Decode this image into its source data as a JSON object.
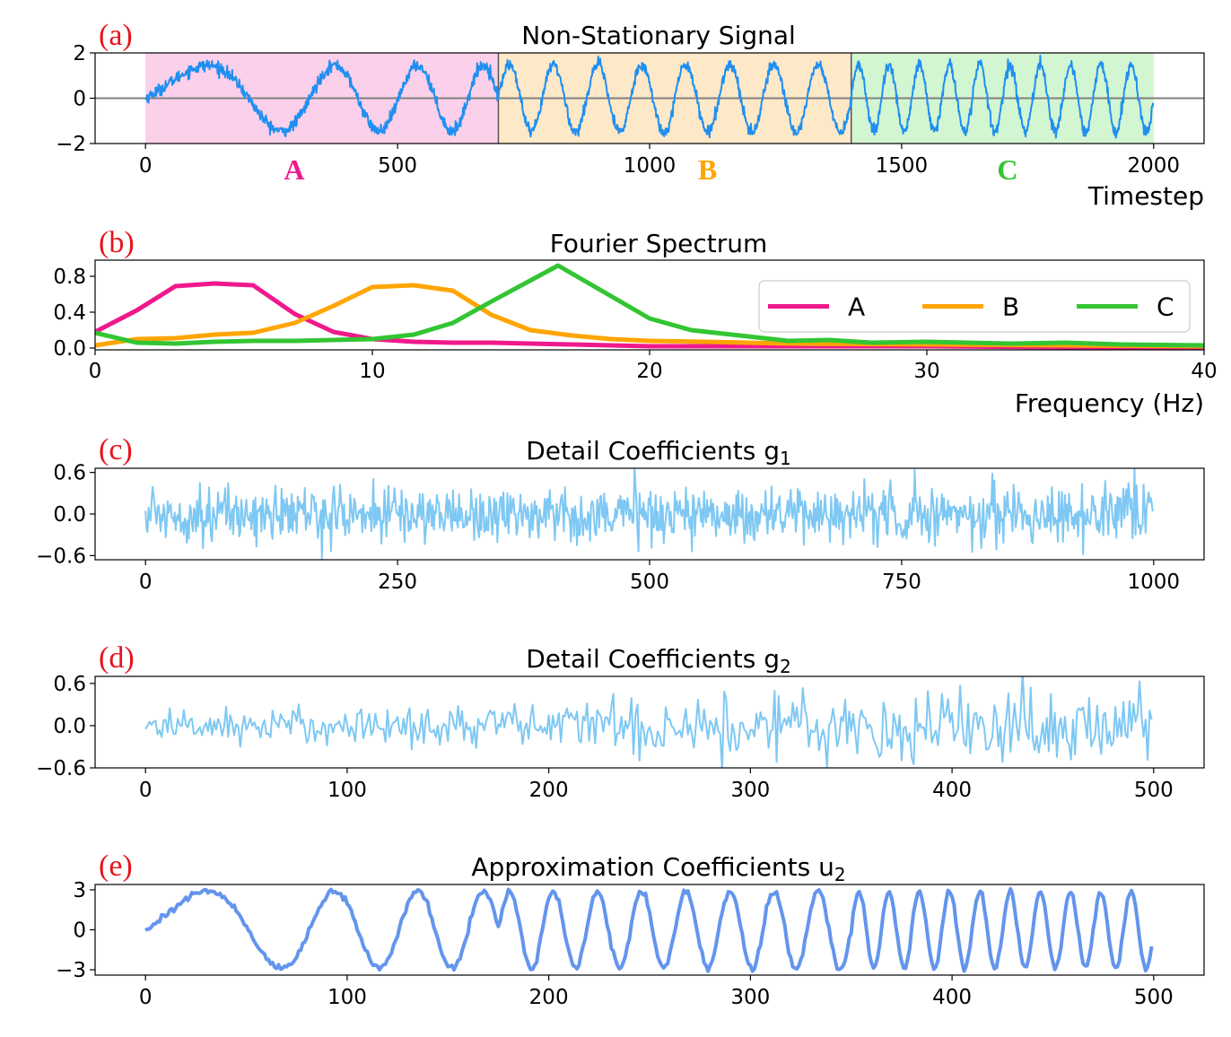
{
  "figure": {
    "colors": {
      "signal": "#1f8ff0",
      "detail": "#7ec8f3",
      "approx": "#6495ed",
      "A": "#f0198c",
      "B": "#ffa500",
      "C": "#33c533",
      "regionA": "#fbd0ea",
      "regionB": "#fde8c8",
      "regionC": "#d2f5d2",
      "zero_line": "#808080",
      "panel_tag": "#e8141c"
    }
  },
  "chart_data": [
    {
      "id": "a",
      "panel_tag": "(a)",
      "type": "line",
      "title": "Non-Stationary Signal",
      "xlabel": "Timestep",
      "ylabel": "",
      "xlim": [
        -100,
        2100
      ],
      "ylim": [
        -2,
        2
      ],
      "xticks": [
        0,
        500,
        1000,
        1500,
        2000
      ],
      "xtick_labels": [
        "0",
        "500",
        "1000",
        "1500",
        "2000"
      ],
      "yticks": [
        2,
        0,
        -2
      ],
      "ytick_labels": [
        "2",
        "0",
        "−2"
      ],
      "zero_line": true,
      "regions": [
        {
          "label": "A",
          "start": 0,
          "end": 700,
          "label_x": 295
        },
        {
          "label": "B",
          "start": 700,
          "end": 1400,
          "label_x": 1115
        },
        {
          "label": "C",
          "start": 1400,
          "end": 2000,
          "label_x": 1710
        }
      ],
      "series": [
        {
          "name": "signal",
          "length": 2000,
          "components": [
            {
              "start": 0,
              "end": 700,
              "amplitude": 1.45,
              "cycles": 3.5,
              "chirp": 2.6
            },
            {
              "start": 700,
              "end": 1400,
              "amplitude": 1.5,
              "cycles": 8,
              "chirp": 0
            },
            {
              "start": 1400,
              "end": 2000,
              "amplitude": 1.5,
              "cycles": 10,
              "chirp": 0
            }
          ],
          "noise": 0.13
        }
      ]
    },
    {
      "id": "b",
      "panel_tag": "(b)",
      "type": "line",
      "title": "Fourier Spectrum",
      "xlabel": "Frequency (Hz)",
      "ylabel": "",
      "xlim": [
        0,
        40
      ],
      "ylim": [
        -0.02,
        0.98
      ],
      "xticks": [
        0,
        10,
        20,
        30,
        40
      ],
      "xtick_labels": [
        "0",
        "10",
        "20",
        "30",
        "40"
      ],
      "yticks": [
        0.8,
        0.4,
        0.0
      ],
      "ytick_labels": [
        "0.8",
        "0.4",
        "0.0"
      ],
      "legend": {
        "position": "center-right",
        "entries": [
          "A",
          "B",
          "C"
        ]
      },
      "series": [
        {
          "name": "A",
          "x": [
            0,
            1.5,
            2.9,
            4.3,
            5.7,
            7.2,
            8.6,
            10,
            11.5,
            12.9,
            14.3,
            15.7,
            17.2,
            18.6,
            20,
            22,
            25,
            30,
            35,
            40
          ],
          "values": [
            0.18,
            0.42,
            0.69,
            0.72,
            0.7,
            0.38,
            0.18,
            0.1,
            0.07,
            0.06,
            0.06,
            0.05,
            0.04,
            0.03,
            0.02,
            0.02,
            0.02,
            0.02,
            0.01,
            0.01
          ]
        },
        {
          "name": "B",
          "x": [
            0,
            1.5,
            2.9,
            4.3,
            5.7,
            7.2,
            8.6,
            10,
            11.5,
            12.9,
            14.3,
            15.7,
            17.2,
            18.6,
            20,
            22,
            25,
            30,
            35,
            40
          ],
          "values": [
            0.03,
            0.1,
            0.11,
            0.15,
            0.17,
            0.28,
            0.47,
            0.68,
            0.7,
            0.64,
            0.37,
            0.2,
            0.14,
            0.1,
            0.08,
            0.07,
            0.05,
            0.04,
            0.03,
            0.02
          ]
        },
        {
          "name": "C",
          "x": [
            0,
            1.5,
            2.9,
            4.3,
            5.7,
            7.2,
            8.6,
            10,
            11.5,
            12.9,
            14.3,
            16.7,
            20,
            21.5,
            25,
            26.5,
            28,
            30,
            33,
            35,
            37,
            40
          ],
          "values": [
            0.17,
            0.06,
            0.05,
            0.07,
            0.08,
            0.08,
            0.09,
            0.1,
            0.15,
            0.28,
            0.52,
            0.92,
            0.33,
            0.2,
            0.08,
            0.09,
            0.06,
            0.07,
            0.05,
            0.06,
            0.04,
            0.03
          ]
        }
      ]
    },
    {
      "id": "c",
      "panel_tag": "(c)",
      "type": "line",
      "title": "Detail Coefficients g",
      "title_sub": "1",
      "xlabel": "",
      "ylabel": "",
      "xlim": [
        -50,
        1050
      ],
      "ylim": [
        -0.66,
        0.66
      ],
      "xticks": [
        0,
        250,
        500,
        750,
        1000
      ],
      "xtick_labels": [
        "0",
        "250",
        "500",
        "750",
        "1000"
      ],
      "yticks": [
        0.6,
        0.0,
        -0.6
      ],
      "ytick_labels": [
        "0.6",
        "0.0",
        "−0.6"
      ],
      "series": [
        {
          "name": "g1",
          "length": 1000,
          "components": [],
          "noise": 0.2
        }
      ]
    },
    {
      "id": "d",
      "panel_tag": "(d)",
      "type": "line",
      "title": "Detail Coefficients g",
      "title_sub": "2",
      "xlabel": "",
      "ylabel": "",
      "xlim": [
        -25,
        525
      ],
      "ylim": [
        -0.6,
        0.7
      ],
      "xticks": [
        0,
        100,
        200,
        300,
        400,
        500
      ],
      "xtick_labels": [
        "0",
        "100",
        "200",
        "300",
        "400",
        "500"
      ],
      "yticks": [
        0.6,
        0.0,
        -0.6
      ],
      "ytick_labels": [
        "0.6",
        "0.0",
        "−0.6"
      ],
      "series": [
        {
          "name": "g2",
          "length": 500,
          "components": [],
          "noise": 0.16,
          "growing": true
        }
      ]
    },
    {
      "id": "e",
      "panel_tag": "(e)",
      "type": "line",
      "title": "Approximation Coefficients u",
      "title_sub": "2",
      "xlabel": "",
      "ylabel": "",
      "xlim": [
        -25,
        525
      ],
      "ylim": [
        -3.4,
        3.4
      ],
      "xticks": [
        0,
        100,
        200,
        300,
        400,
        500
      ],
      "xtick_labels": [
        "0",
        "100",
        "200",
        "300",
        "400",
        "500"
      ],
      "yticks": [
        3,
        0,
        -3
      ],
      "ytick_labels": [
        "3",
        "0",
        "−3"
      ],
      "series": [
        {
          "name": "u2",
          "length": 500,
          "components": [
            {
              "start": 0,
              "end": 175,
              "amplitude": 2.9,
              "cycles": 3.5,
              "chirp": 2.6
            },
            {
              "start": 175,
              "end": 350,
              "amplitude": 2.9,
              "cycles": 8,
              "chirp": 0
            },
            {
              "start": 350,
              "end": 500,
              "amplitude": 2.9,
              "cycles": 10,
              "chirp": 0
            }
          ],
          "noise": 0.12
        }
      ]
    }
  ]
}
